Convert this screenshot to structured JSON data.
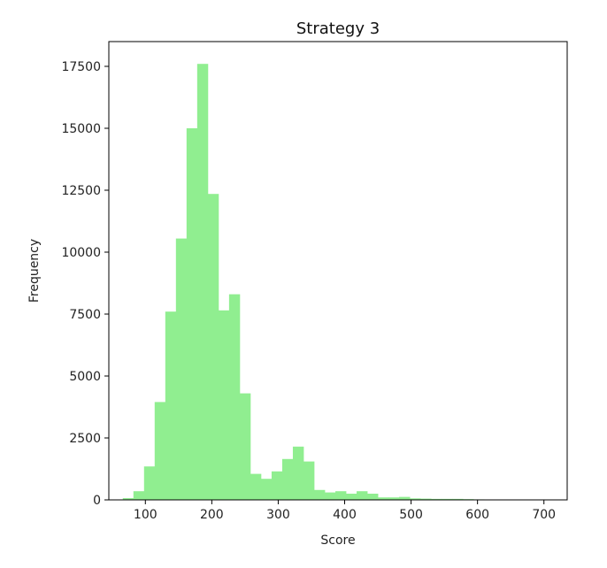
{
  "chart_data": {
    "type": "bar",
    "subtype": "histogram",
    "title": "Strategy 3",
    "xlabel": "Score",
    "ylabel": "Frequency",
    "xlim": [
      45,
      735
    ],
    "ylim": [
      0,
      18500
    ],
    "xticks": [
      100,
      200,
      300,
      400,
      500,
      600,
      700
    ],
    "yticks": [
      0,
      2500,
      5000,
      7500,
      10000,
      12500,
      15000,
      17500
    ],
    "bar_color": "#90ee90",
    "grid": false,
    "bin_edges": [
      66,
      82,
      98,
      114,
      130,
      146,
      162,
      178,
      194,
      210,
      226,
      242,
      258,
      274,
      290,
      306,
      322,
      338,
      354,
      370,
      386,
      402,
      418,
      434,
      450,
      466,
      482,
      498,
      514,
      530,
      546,
      562,
      578,
      594,
      610,
      626,
      642,
      658,
      674,
      690,
      706,
      722
    ],
    "values": [
      70,
      350,
      1350,
      3950,
      7600,
      10550,
      15000,
      17600,
      12350,
      7650,
      8300,
      4300,
      1050,
      850,
      1150,
      1650,
      2150,
      1550,
      400,
      300,
      350,
      250,
      350,
      250,
      100,
      100,
      120,
      60,
      50,
      40,
      40,
      40,
      30,
      20,
      10,
      10,
      5,
      5,
      5,
      5,
      5
    ]
  }
}
